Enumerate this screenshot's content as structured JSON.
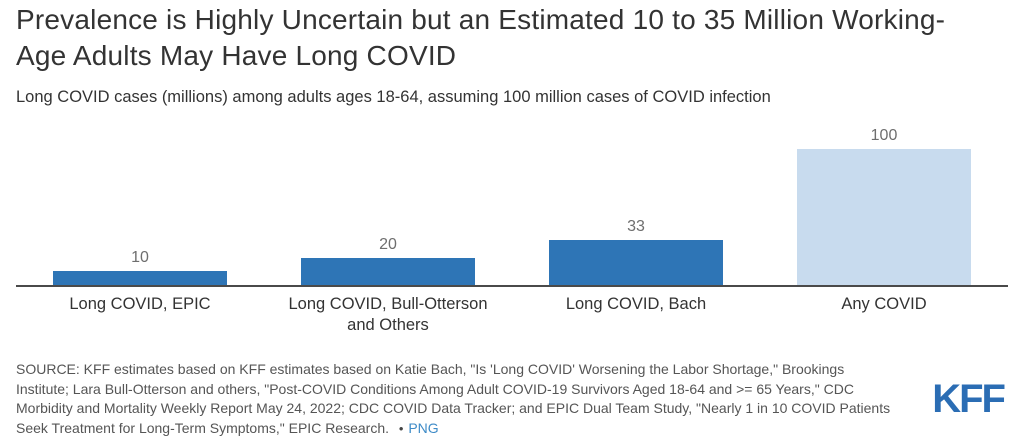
{
  "header": {
    "title": "Prevalence is Highly Uncertain but an Estimated 10 to 35 Million Working-Age Adults May Have Long COVID",
    "subtitle": "Long COVID cases (millions) among adults ages 18-64, assuming 100 million cases of COVID infection"
  },
  "chart_data": {
    "type": "bar",
    "title": "Prevalence is Highly Uncertain but an Estimated 10 to 35 Million Working-Age Adults May Have Long COVID",
    "subtitle": "Long COVID cases (millions) among adults ages 18-64, assuming 100 million cases of COVID infection",
    "categories": [
      "Long COVID, EPIC",
      "Long COVID, Bull-Otterson\nand Others",
      "Long COVID, Bach",
      "Any COVID"
    ],
    "values": [
      10,
      20,
      33,
      100
    ],
    "value_labels": [
      "10",
      "20",
      "33",
      "100"
    ],
    "bar_colors": [
      "#2E75B6",
      "#2E75B6",
      "#2E75B6",
      "#C8DBEE"
    ],
    "xlabel": "",
    "ylabel": "Long COVID cases (millions)",
    "ylim": [
      0,
      100
    ],
    "grid": false,
    "legend": "none",
    "baseline_axis": true
  },
  "footer": {
    "source_lines": [
      "SOURCE: KFF estimates based on KFF estimates based on Katie Bach, \"Is 'Long COVID' Worsening the Labor Shortage,\" Brookings",
      "Institute; Lara Bull-Otterson and others, \"Post-COVID Conditions Among Adult COVID-19 Survivors Aged 18-64 and >= 65 Years,\" CDC",
      "Morbidity and Mortality Weekly Report May 24, 2022; CDC COVID Data Tracker; and EPIC Dual Team Study, \"Nearly 1 in 10 COVID Patients",
      "Seek Treatment for Long-Term Symptoms,\" EPIC Research."
    ],
    "bullet": "•",
    "png_link_label": "PNG",
    "logo_text": "KFF"
  },
  "colors": {
    "bar_dark_blue": "#2E75B6",
    "bar_light_blue": "#C8DBEE",
    "axis_line": "#4a4a4a",
    "value_label_gray": "#6e6e6e",
    "title_text": "#333333",
    "footer_text": "#555555",
    "kff_logo_blue": "#2B6DB4",
    "link_blue": "#3E8BC7"
  }
}
